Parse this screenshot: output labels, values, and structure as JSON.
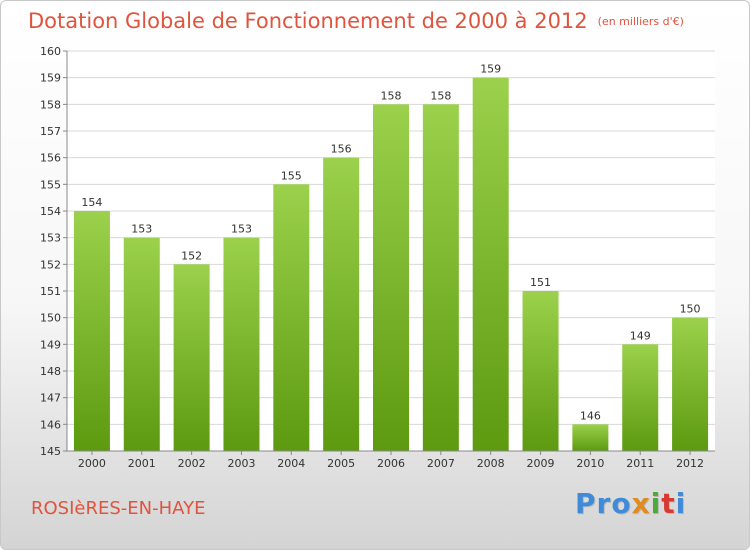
{
  "chart_data": {
    "type": "bar",
    "title": "Dotation Globale de Fonctionnement de 2000 à 2012",
    "subtitle": "(en milliers d'€)",
    "categories": [
      "2000",
      "2001",
      "2002",
      "2003",
      "2004",
      "2005",
      "2006",
      "2007",
      "2008",
      "2009",
      "2010",
      "2011",
      "2012"
    ],
    "values": [
      154,
      153,
      152,
      153,
      155,
      156,
      158,
      158,
      159,
      151,
      146,
      149,
      150
    ],
    "ylim": [
      145,
      160
    ],
    "yticks": [
      145,
      146,
      147,
      148,
      149,
      150,
      151,
      152,
      153,
      154,
      155,
      156,
      157,
      158,
      159,
      160
    ],
    "grid": true,
    "xlabel": "",
    "ylabel": ""
  },
  "commune": "ROSIèRES-EN-HAYE",
  "logo": {
    "text": "Proxiti",
    "letters": [
      "Pro",
      "x",
      "i",
      "t",
      "i"
    ]
  },
  "colors": {
    "title": "#e0543d",
    "bar_light": "#9bd14c",
    "bar_dark": "#5d9a10",
    "grid": "#d8d8d8",
    "axis": "#888888"
  }
}
